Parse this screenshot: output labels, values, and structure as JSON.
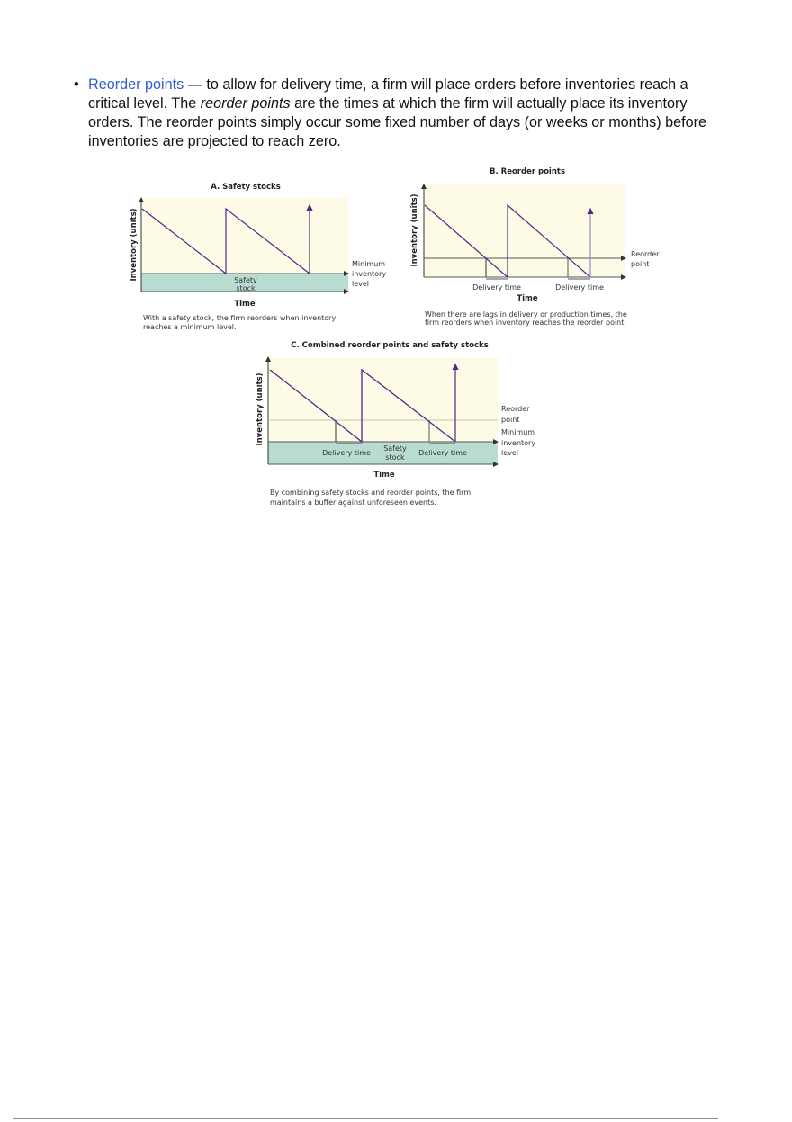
{
  "paragraph": {
    "bullet": "•",
    "term": "Reorder points",
    "text1": " — to allow for delivery time, a firm will place orders before inventories reach a critical level. The ",
    "italic": "reorder points",
    "text2": " are the times at which the firm will actually place its inventory orders. The reorder points simply occur some fixed number of days (or weeks or months) before inventories are projected to reach zero."
  },
  "colors": {
    "link": "#2f5fd0",
    "plot_bg": "#fdfbe6",
    "safety_stock": "#b8ddd0",
    "inventory_line": "#4b2a8a"
  },
  "figures": {
    "a": {
      "title": "A. Safety stocks",
      "ylabel": "Inventory (units)",
      "xlabel": "Time",
      "min_label": [
        "Minimum",
        "inventory",
        "level"
      ],
      "safety": [
        "Safety",
        "stock"
      ],
      "caption": [
        "With a safety stock, the firm reorders when inventory",
        "reaches a minimum level."
      ]
    },
    "b": {
      "title": "B. Reorder points",
      "ylabel": "Inventory (units)",
      "xlabel": "Time",
      "reorder_label": [
        "Reorder",
        "point"
      ],
      "delivery": "Delivery time",
      "caption": [
        "When there are lags in delivery or production times, the",
        "firm reorders when inventory reaches the reorder point."
      ]
    },
    "c": {
      "title": "C. Combined reorder points and safety stocks",
      "ylabel": "Inventory (units)",
      "xlabel": "Time",
      "right_labels": [
        "Reorder",
        "point",
        "Minimum",
        "inventory",
        "level"
      ],
      "delivery": "Delivery time",
      "safety": [
        "Safety",
        "stock"
      ],
      "caption": [
        "By combining safety stocks and reorder points, the firm",
        "maintains a buffer against unforeseen events."
      ]
    }
  }
}
